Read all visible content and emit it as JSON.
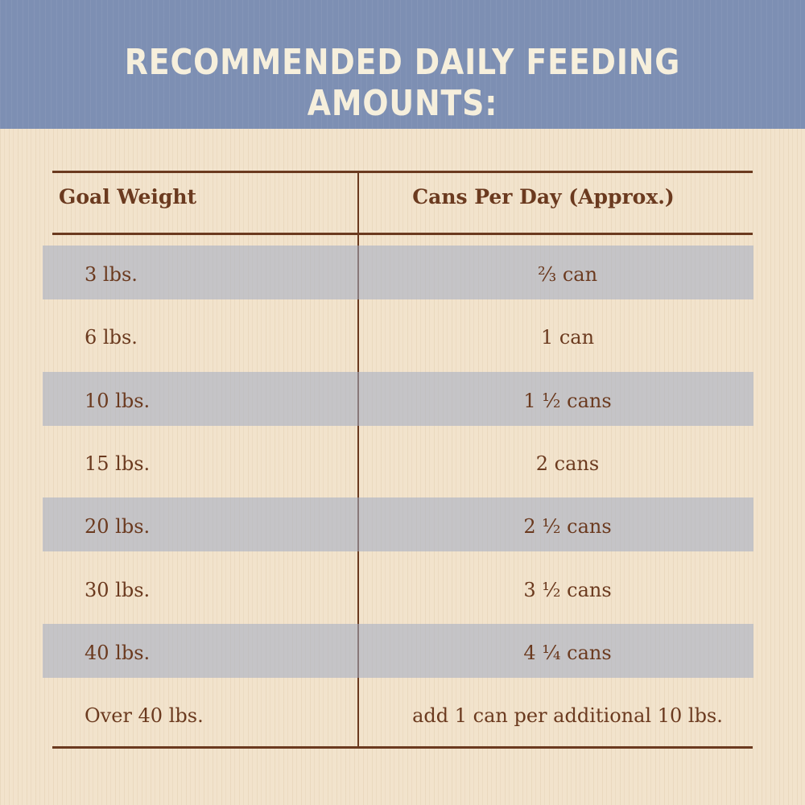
{
  "header": {
    "title": "RECOMMENDED DAILY FEEDING AMOUNTS:"
  },
  "table": {
    "columns": [
      "Goal Weight",
      "Cans Per Day (Approx.)"
    ],
    "rows": [
      [
        "3 lbs.",
        "⅔ can"
      ],
      [
        "6 lbs.",
        "1 can"
      ],
      [
        "10 lbs.",
        "1 ½ cans"
      ],
      [
        "15 lbs.",
        "2 cans"
      ],
      [
        "20 lbs.",
        "2 ½ cans"
      ],
      [
        "30 lbs.",
        "3 ½ cans"
      ],
      [
        "40 lbs.",
        "4 ¼ cans"
      ],
      [
        "Over 40 lbs.",
        "add 1 can per additional 10 lbs."
      ]
    ]
  }
}
